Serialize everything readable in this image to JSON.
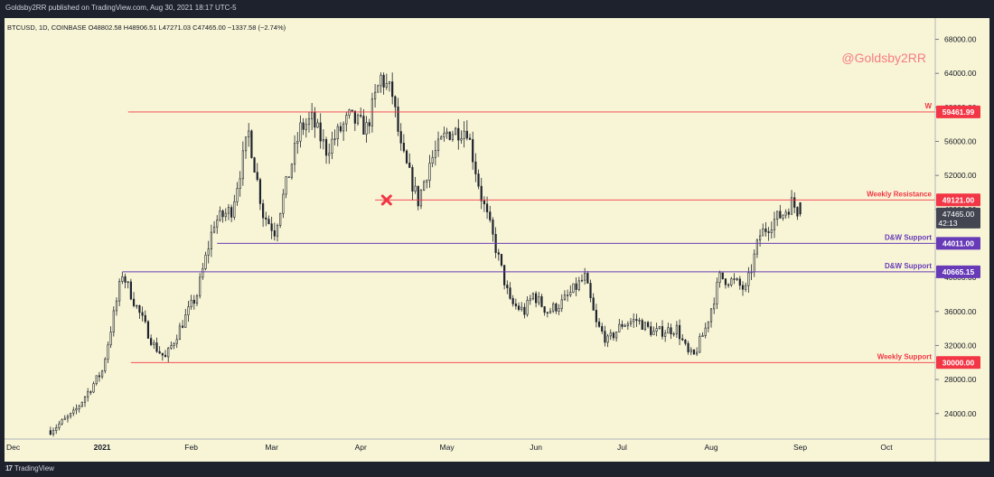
{
  "header": {
    "published": "Goldsby2RR published on TradingView.com, Aug 30, 2021 18:17 UTC-5"
  },
  "footer": {
    "logo_mark": "17",
    "brand": "TradingView"
  },
  "chart_data": {
    "type": "candlestick",
    "symbol_line": "BTCUSD, 1D, COINBASE  O48802.58  H48906.51  L47271.03  C47465.00  −1337.58 (−2.74%)",
    "watermark": "@Goldsby2RR",
    "ylim": [
      21000,
      70500
    ],
    "y_ticks": [
      24000,
      28000,
      32000,
      36000,
      40000,
      44000,
      48000,
      52000,
      56000,
      60000,
      64000,
      68000
    ],
    "y_tick_labels": [
      "24000.00",
      "28000.00",
      "32000.00",
      "36000.00",
      "40000.00",
      "44000.00",
      "48000.00",
      "52000.00",
      "56000.00",
      "60000.00",
      "64000.00",
      "68000.00"
    ],
    "x_labels": [
      {
        "label": "Dec",
        "day": -31
      },
      {
        "label": "2021",
        "day": 0
      },
      {
        "label": "Feb",
        "day": 31
      },
      {
        "label": "Mar",
        "day": 59
      },
      {
        "label": "Apr",
        "day": 90
      },
      {
        "label": "May",
        "day": 120
      },
      {
        "label": "Jun",
        "day": 151
      },
      {
        "label": "Jul",
        "day": 181
      },
      {
        "label": "Aug",
        "day": 212
      },
      {
        "label": "Sep",
        "day": 243
      },
      {
        "label": "Oct",
        "day": 273
      }
    ],
    "x_range_days": [
      -34,
      290
    ],
    "levels": [
      {
        "name": "W",
        "price": 59461.99,
        "label": "59461.99",
        "color": "#f23645",
        "start_day": 9
      },
      {
        "name": "Weekly Resistance",
        "price": 49121.0,
        "label": "49121.00",
        "color": "#f23645",
        "start_day": 95
      },
      {
        "name": "D&W Support",
        "price": 44011.0,
        "label": "44011.00",
        "color": "#673ab7",
        "start_day": 40
      },
      {
        "name": "D&W Support",
        "price": 40665.15,
        "label": "40665.15",
        "color": "#673ab7",
        "start_day": 7
      },
      {
        "name": "Weekly Support",
        "price": 30000.0,
        "label": "30000.00",
        "color": "#f23645",
        "start_day": 10
      }
    ],
    "last_price": {
      "value": 47465.0,
      "label": "47465.00",
      "countdown": "42:13",
      "color": "#434651"
    },
    "marker": {
      "type": "x",
      "day": 99,
      "price": 49100,
      "color": "#f23645"
    },
    "candle_color": "#1e222d",
    "ohlc_anchors": [
      {
        "day": -18,
        "close": 22000
      },
      {
        "day": -10,
        "close": 24000
      },
      {
        "day": 0,
        "close": 29000
      },
      {
        "day": 7,
        "close": 40500
      },
      {
        "day": 12,
        "close": 36500
      },
      {
        "day": 18,
        "close": 32000
      },
      {
        "day": 22,
        "close": 30500
      },
      {
        "day": 27,
        "close": 34000
      },
      {
        "day": 33,
        "close": 38000
      },
      {
        "day": 39,
        "close": 46500
      },
      {
        "day": 45,
        "close": 48000
      },
      {
        "day": 51,
        "close": 57000
      },
      {
        "day": 56,
        "close": 47500
      },
      {
        "day": 60,
        "close": 45500
      },
      {
        "day": 69,
        "close": 57500
      },
      {
        "day": 73,
        "close": 58500
      },
      {
        "day": 78,
        "close": 55000
      },
      {
        "day": 86,
        "close": 58800
      },
      {
        "day": 92,
        "close": 57500
      },
      {
        "day": 97,
        "close": 63500
      },
      {
        "day": 101,
        "close": 61500
      },
      {
        "day": 104,
        "close": 55000
      },
      {
        "day": 110,
        "close": 49000
      },
      {
        "day": 114,
        "close": 53500
      },
      {
        "day": 120,
        "close": 57000
      },
      {
        "day": 127,
        "close": 57500
      },
      {
        "day": 132,
        "close": 49500
      },
      {
        "day": 137,
        "close": 43500
      },
      {
        "day": 142,
        "close": 37000
      },
      {
        "day": 147,
        "close": 36000
      },
      {
        "day": 150,
        "close": 38000
      },
      {
        "day": 155,
        "close": 36000
      },
      {
        "day": 160,
        "close": 37000
      },
      {
        "day": 168,
        "close": 40000
      },
      {
        "day": 172,
        "close": 34500
      },
      {
        "day": 176,
        "close": 32500
      },
      {
        "day": 181,
        "close": 34500
      },
      {
        "day": 186,
        "close": 35000
      },
      {
        "day": 192,
        "close": 33500
      },
      {
        "day": 200,
        "close": 34000
      },
      {
        "day": 204,
        "close": 31000
      },
      {
        "day": 206,
        "close": 30800
      },
      {
        "day": 210,
        "close": 34000
      },
      {
        "day": 215,
        "close": 40000
      },
      {
        "day": 220,
        "close": 39500
      },
      {
        "day": 224,
        "close": 38500
      },
      {
        "day": 229,
        "close": 45000
      },
      {
        "day": 233,
        "close": 46500
      },
      {
        "day": 237,
        "close": 47500
      },
      {
        "day": 240,
        "close": 48800
      },
      {
        "day": 243,
        "close": 47465
      }
    ]
  }
}
